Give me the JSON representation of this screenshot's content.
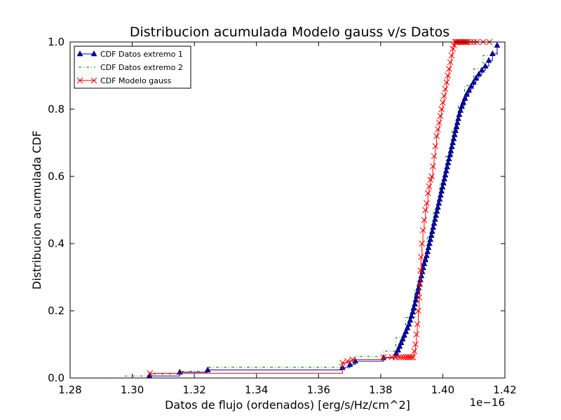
{
  "chart_data": {
    "type": "line",
    "title": "Distribucion acumulada Modelo gauss v/s Datos",
    "xlabel": "Datos de flujo (ordenados) [erg/s/Hz/cm^2]",
    "ylabel": "Distribucion acumulada CDF",
    "x_offset_label": "1e−16",
    "xlim": [
      1.28,
      1.42
    ],
    "ylim": [
      0.0,
      1.0
    ],
    "x_ticks": [
      1.28,
      1.3,
      1.32,
      1.34,
      1.36,
      1.38,
      1.4,
      1.42
    ],
    "x_tick_labels": [
      "1.28",
      "1.30",
      "1.32",
      "1.34",
      "1.36",
      "1.38",
      "1.40",
      "1.42"
    ],
    "y_ticks": [
      0.0,
      0.2,
      0.4,
      0.6,
      0.8,
      1.0
    ],
    "y_tick_labels": [
      "0.0",
      "0.2",
      "0.4",
      "0.6",
      "0.8",
      "1.0"
    ],
    "grid": false,
    "legend_position": "top-left",
    "series": [
      {
        "name": "CDF Datos extremo 1",
        "color": "#0000bf",
        "style": "solid-triangle-markers",
        "x": [
          1.3055,
          1.3153,
          1.3243,
          1.3677,
          1.3701,
          1.3718,
          1.3809,
          1.3849,
          1.3856,
          1.3861,
          1.3866,
          1.3871,
          1.3876,
          1.3881,
          1.3886,
          1.3891,
          1.3895,
          1.3899,
          1.3903,
          1.3906,
          1.391,
          1.3913,
          1.3916,
          1.3919,
          1.3922,
          1.3925,
          1.3928,
          1.3931,
          1.3934,
          1.3937,
          1.394,
          1.3944,
          1.3948,
          1.3951,
          1.3954,
          1.3957,
          1.396,
          1.3963,
          1.3966,
          1.3969,
          1.3972,
          1.3975,
          1.3978,
          1.3981,
          1.3984,
          1.3987,
          1.399,
          1.3993,
          1.3996,
          1.3999,
          1.4002,
          1.4005,
          1.4008,
          1.4011,
          1.4014,
          1.4017,
          1.402,
          1.4023,
          1.4026,
          1.4029,
          1.4032,
          1.4035,
          1.4038,
          1.4041,
          1.4044,
          1.4047,
          1.405,
          1.4053,
          1.4057,
          1.4061,
          1.4066,
          1.4071,
          1.4077,
          1.4084,
          1.4091,
          1.4099,
          1.4107,
          1.4116,
          1.4126,
          1.4137,
          1.4148,
          1.416,
          1.4175
        ],
        "y": [
          0.006,
          0.017,
          0.024,
          0.031,
          0.04,
          0.05,
          0.06,
          0.072,
          0.083,
          0.094,
          0.105,
          0.116,
          0.127,
          0.138,
          0.149,
          0.16,
          0.172,
          0.184,
          0.196,
          0.208,
          0.22,
          0.232,
          0.244,
          0.256,
          0.268,
          0.28,
          0.292,
          0.304,
          0.316,
          0.328,
          0.34,
          0.352,
          0.364,
          0.376,
          0.388,
          0.4,
          0.412,
          0.424,
          0.436,
          0.448,
          0.46,
          0.472,
          0.484,
          0.496,
          0.508,
          0.52,
          0.532,
          0.544,
          0.556,
          0.568,
          0.58,
          0.592,
          0.604,
          0.616,
          0.628,
          0.64,
          0.652,
          0.664,
          0.676,
          0.688,
          0.7,
          0.712,
          0.724,
          0.736,
          0.748,
          0.76,
          0.772,
          0.784,
          0.796,
          0.808,
          0.82,
          0.832,
          0.844,
          0.856,
          0.868,
          0.88,
          0.892,
          0.904,
          0.916,
          0.928,
          0.945,
          0.965,
          0.99
        ]
      },
      {
        "name": "CDF Datos extremo 2",
        "color": "#008000",
        "style": "dash-dot",
        "x": [
          1.2975,
          1.3055,
          1.3153,
          1.3243,
          1.3677,
          1.3701,
          1.3718,
          1.3809,
          1.3849,
          1.388,
          1.391,
          1.393,
          1.395,
          1.397,
          1.399,
          1.401,
          1.403,
          1.405,
          1.407,
          1.41,
          1.413,
          1.4175
        ],
        "y": [
          0.006,
          0.012,
          0.02,
          0.032,
          0.045,
          0.055,
          0.064,
          0.08,
          0.12,
          0.18,
          0.26,
          0.34,
          0.42,
          0.5,
          0.58,
          0.66,
          0.74,
          0.81,
          0.87,
          0.92,
          0.96,
          0.995
        ]
      },
      {
        "name": "CDF Modelo gauss",
        "color": "#ff0000",
        "style": "solid-x-markers",
        "x": [
          1.3057,
          1.3677,
          1.3693,
          1.3709,
          1.3809,
          1.3836,
          1.3848,
          1.3858,
          1.3866,
          1.3874,
          1.3881,
          1.3887,
          1.3893,
          1.3898,
          1.3904,
          1.3908,
          1.3912,
          1.3915,
          1.3918,
          1.3921,
          1.3924,
          1.3926,
          1.3928,
          1.393,
          1.3933,
          1.3936,
          1.394,
          1.3944,
          1.3948,
          1.3952,
          1.3956,
          1.396,
          1.3964,
          1.3968,
          1.3972,
          1.3976,
          1.398,
          1.3984,
          1.3988,
          1.3992,
          1.3996,
          1.4,
          1.4004,
          1.4008,
          1.4012,
          1.4016,
          1.402,
          1.4024,
          1.4028,
          1.4032,
          1.4036,
          1.404,
          1.4044,
          1.4048,
          1.4052,
          1.4056,
          1.406,
          1.4064,
          1.4068,
          1.4072,
          1.4076,
          1.408,
          1.409,
          1.41,
          1.411,
          1.413,
          1.415
        ],
        "y": [
          0.014,
          0.045,
          0.05,
          0.055,
          0.062,
          0.062,
          0.062,
          0.062,
          0.062,
          0.062,
          0.062,
          0.062,
          0.062,
          0.062,
          0.062,
          0.08,
          0.1,
          0.13,
          0.16,
          0.2,
          0.24,
          0.28,
          0.32,
          0.36,
          0.4,
          0.44,
          0.47,
          0.5,
          0.52,
          0.55,
          0.57,
          0.59,
          0.6,
          0.63,
          0.66,
          0.69,
          0.72,
          0.74,
          0.76,
          0.78,
          0.8,
          0.82,
          0.84,
          0.86,
          0.88,
          0.9,
          0.92,
          0.94,
          0.96,
          0.98,
          0.99,
          1.0,
          1.0,
          1.0,
          1.0,
          1.0,
          1.0,
          1.0,
          1.0,
          1.0,
          1.0,
          1.0,
          1.0,
          1.0,
          1.0,
          1.0,
          1.0
        ]
      }
    ]
  }
}
